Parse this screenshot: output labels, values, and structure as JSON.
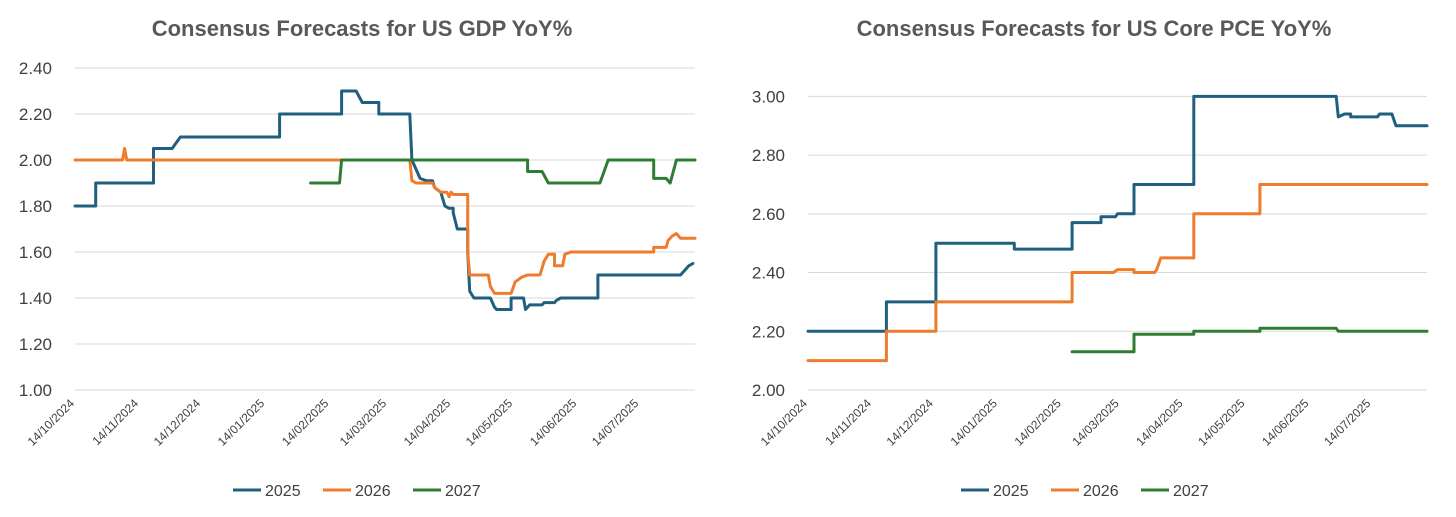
{
  "colors": {
    "s2025": "#1f5f7f",
    "s2026": "#ef7b2d",
    "s2027": "#2e7d32",
    "grid": "#d9d9d9",
    "text": "#404040",
    "title": "#595959"
  },
  "chart_data": [
    {
      "type": "line",
      "title": "Consensus Forecasts for US GDP YoY%",
      "xlabel": "",
      "ylabel": "",
      "x_range": [
        0,
        300
      ],
      "ylim": [
        1.0,
        2.4
      ],
      "y_ticks": [
        "1.00",
        "1.20",
        "1.40",
        "1.60",
        "1.80",
        "2.00",
        "2.20",
        "2.40"
      ],
      "x_ticks": [
        {
          "x": 0,
          "label": "14/10/2024"
        },
        {
          "x": 31,
          "label": "14/11/2024"
        },
        {
          "x": 61,
          "label": "14/12/2024"
        },
        {
          "x": 92,
          "label": "14/01/2025"
        },
        {
          "x": 123,
          "label": "14/02/2025"
        },
        {
          "x": 151,
          "label": "14/03/2025"
        },
        {
          "x": 182,
          "label": "14/04/2025"
        },
        {
          "x": 212,
          "label": "14/05/2025"
        },
        {
          "x": 243,
          "label": "14/06/2025"
        },
        {
          "x": 273,
          "label": "14/07/2025"
        }
      ],
      "grid": true,
      "legend": "bottom-center",
      "series": [
        {
          "name": "2025",
          "color_key": "s2025",
          "points": [
            [
              0,
              1.8
            ],
            [
              10,
              1.8
            ],
            [
              10,
              1.9
            ],
            [
              38,
              1.9
            ],
            [
              38,
              2.05
            ],
            [
              47,
              2.05
            ],
            [
              51,
              2.1
            ],
            [
              99,
              2.1
            ],
            [
              99,
              2.2
            ],
            [
              129,
              2.2
            ],
            [
              129,
              2.3
            ],
            [
              136,
              2.3
            ],
            [
              139,
              2.25
            ],
            [
              147,
              2.25
            ],
            [
              147,
              2.2
            ],
            [
              162,
              2.2
            ],
            [
              163,
              2.0
            ],
            [
              167,
              1.92
            ],
            [
              170,
              1.91
            ],
            [
              173,
              1.91
            ],
            [
              174,
              1.88
            ],
            [
              177,
              1.86
            ],
            [
              179,
              1.8
            ],
            [
              181,
              1.79
            ],
            [
              183,
              1.79
            ],
            [
              183,
              1.77
            ],
            [
              185,
              1.7
            ],
            [
              190,
              1.7
            ],
            [
              190,
              1.6
            ],
            [
              191,
              1.43
            ],
            [
              193,
              1.4
            ],
            [
              201,
              1.4
            ],
            [
              203,
              1.36
            ],
            [
              204,
              1.35
            ],
            [
              211,
              1.35
            ],
            [
              211,
              1.4
            ],
            [
              217,
              1.4
            ],
            [
              218,
              1.35
            ],
            [
              220,
              1.37
            ],
            [
              226,
              1.37
            ],
            [
              227,
              1.38
            ],
            [
              232,
              1.38
            ],
            [
              233,
              1.39
            ],
            [
              235,
              1.4
            ],
            [
              253,
              1.4
            ],
            [
              253,
              1.5
            ],
            [
              293,
              1.5
            ],
            [
              295,
              1.52
            ],
            [
              297,
              1.54
            ],
            [
              299,
              1.55
            ]
          ]
        },
        {
          "name": "2026",
          "color_key": "s2026",
          "points": [
            [
              0,
              2.0
            ],
            [
              23,
              2.0
            ],
            [
              24,
              2.05
            ],
            [
              25,
              2.0
            ],
            [
              162,
              2.0
            ],
            [
              163,
              1.91
            ],
            [
              165,
              1.9
            ],
            [
              173,
              1.9
            ],
            [
              174,
              1.88
            ],
            [
              177,
              1.86
            ],
            [
              180,
              1.86
            ],
            [
              181,
              1.84
            ],
            [
              182,
              1.86
            ],
            [
              183,
              1.85
            ],
            [
              190,
              1.85
            ],
            [
              190,
              1.6
            ],
            [
              191,
              1.5
            ],
            [
              200,
              1.5
            ],
            [
              201,
              1.45
            ],
            [
              203,
              1.42
            ],
            [
              211,
              1.42
            ],
            [
              213,
              1.47
            ],
            [
              216,
              1.49
            ],
            [
              219,
              1.5
            ],
            [
              225,
              1.5
            ],
            [
              226,
              1.53
            ],
            [
              227,
              1.56
            ],
            [
              229,
              1.59
            ],
            [
              232,
              1.59
            ],
            [
              232,
              1.54
            ],
            [
              236,
              1.54
            ],
            [
              237,
              1.59
            ],
            [
              240,
              1.6
            ],
            [
              280,
              1.6
            ],
            [
              280,
              1.62
            ],
            [
              286,
              1.62
            ],
            [
              287,
              1.65
            ],
            [
              289,
              1.67
            ],
            [
              291,
              1.68
            ],
            [
              293,
              1.66
            ],
            [
              300,
              1.66
            ]
          ]
        },
        {
          "name": "2027",
          "color_key": "s2027",
          "points": [
            [
              114,
              1.9
            ],
            [
              128,
              1.9
            ],
            [
              129,
              2.0
            ],
            [
              219,
              2.0
            ],
            [
              219,
              1.95
            ],
            [
              226,
              1.95
            ],
            [
              229,
              1.9
            ],
            [
              254,
              1.9
            ],
            [
              256,
              1.95
            ],
            [
              258,
              2.0
            ],
            [
              280,
              2.0
            ],
            [
              280,
              1.92
            ],
            [
              286,
              1.92
            ],
            [
              288,
              1.9
            ],
            [
              291,
              2.0
            ],
            [
              300,
              2.0
            ]
          ]
        }
      ]
    },
    {
      "type": "line",
      "title": "Consensus Forecasts for US Core PCE YoY%",
      "xlabel": "",
      "ylabel": "",
      "x_range": [
        0,
        300
      ],
      "ylim": [
        2.0,
        3.1
      ],
      "y_ticks": [
        "2.00",
        "2.20",
        "2.40",
        "2.60",
        "2.80",
        "3.00"
      ],
      "x_ticks": [
        {
          "x": 0,
          "label": "14/10/2024"
        },
        {
          "x": 31,
          "label": "14/11/2024"
        },
        {
          "x": 61,
          "label": "14/12/2024"
        },
        {
          "x": 92,
          "label": "14/01/2025"
        },
        {
          "x": 123,
          "label": "14/02/2025"
        },
        {
          "x": 151,
          "label": "14/03/2025"
        },
        {
          "x": 182,
          "label": "14/04/2025"
        },
        {
          "x": 212,
          "label": "14/05/2025"
        },
        {
          "x": 243,
          "label": "14/06/2025"
        },
        {
          "x": 273,
          "label": "14/07/2025"
        }
      ],
      "grid": true,
      "legend": "bottom-center",
      "series": [
        {
          "name": "2025",
          "color_key": "s2025",
          "points": [
            [
              0,
              2.2
            ],
            [
              38,
              2.2
            ],
            [
              38,
              2.3
            ],
            [
              62,
              2.3
            ],
            [
              62,
              2.5
            ],
            [
              100,
              2.5
            ],
            [
              100,
              2.48
            ],
            [
              128,
              2.48
            ],
            [
              128,
              2.57
            ],
            [
              142,
              2.57
            ],
            [
              142,
              2.59
            ],
            [
              149,
              2.59
            ],
            [
              150,
              2.6
            ],
            [
              158,
              2.6
            ],
            [
              158,
              2.7
            ],
            [
              187,
              2.7
            ],
            [
              187,
              3.0
            ],
            [
              256,
              3.0
            ],
            [
              257,
              2.93
            ],
            [
              260,
              2.94
            ],
            [
              263,
              2.94
            ],
            [
              263,
              2.93
            ],
            [
              276,
              2.93
            ],
            [
              277,
              2.94
            ],
            [
              283,
              2.94
            ],
            [
              285,
              2.9
            ],
            [
              300,
              2.9
            ]
          ]
        },
        {
          "name": "2026",
          "color_key": "s2026",
          "points": [
            [
              0,
              2.1
            ],
            [
              38,
              2.1
            ],
            [
              38,
              2.2
            ],
            [
              62,
              2.2
            ],
            [
              62,
              2.3
            ],
            [
              128,
              2.3
            ],
            [
              128,
              2.4
            ],
            [
              148,
              2.4
            ],
            [
              150,
              2.41
            ],
            [
              158,
              2.41
            ],
            [
              158,
              2.4
            ],
            [
              168,
              2.4
            ],
            [
              169,
              2.41
            ],
            [
              171,
              2.45
            ],
            [
              187,
              2.45
            ],
            [
              187,
              2.6
            ],
            [
              219,
              2.6
            ],
            [
              219,
              2.7
            ],
            [
              300,
              2.7
            ]
          ]
        },
        {
          "name": "2027",
          "color_key": "s2027",
          "points": [
            [
              128,
              2.13
            ],
            [
              158,
              2.13
            ],
            [
              158,
              2.19
            ],
            [
              187,
              2.19
            ],
            [
              187,
              2.2
            ],
            [
              219,
              2.2
            ],
            [
              219,
              2.21
            ],
            [
              256,
              2.21
            ],
            [
              257,
              2.2
            ],
            [
              300,
              2.2
            ]
          ]
        }
      ]
    }
  ]
}
